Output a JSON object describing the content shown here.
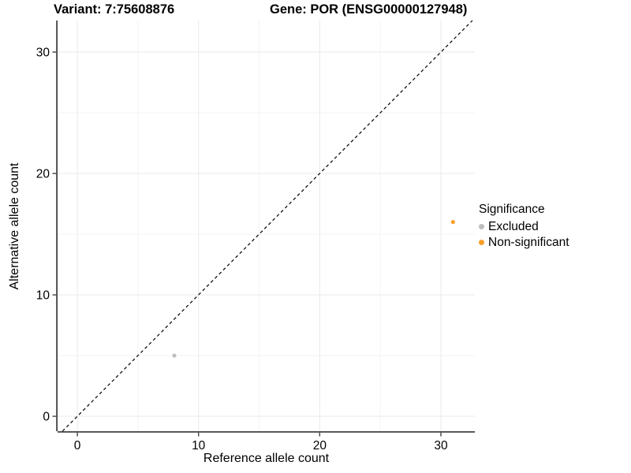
{
  "titles": {
    "variant": "Variant: 7:75608876",
    "gene": "Gene: POR (ENSG00000127948)"
  },
  "axes": {
    "x_label": "Reference allele count",
    "y_label": "Alternative allele count"
  },
  "legend": {
    "title": "Significance",
    "items": [
      {
        "label": "Excluded",
        "color": "#BDBDBD"
      },
      {
        "label": "Non-significant",
        "color": "#F9A02B"
      }
    ]
  },
  "chart_data": {
    "type": "scatter",
    "title": "Variant: 7:75608876   Gene: POR (ENSG00000127948)",
    "xlabel": "Reference allele count",
    "ylabel": "Alternative allele count",
    "xlim": [
      -1.63,
      32.8
    ],
    "ylim": [
      -1.23,
      32.6
    ],
    "x_ticks": [
      0,
      10,
      20,
      30
    ],
    "y_ticks": [
      0,
      10,
      20,
      30
    ],
    "x_minor_breaks": [
      5,
      15,
      25
    ],
    "y_minor_breaks": [
      5,
      15,
      25
    ],
    "grid": true,
    "legend_position": "right",
    "identity_line": {
      "type": "y=x",
      "style": "dashed",
      "color": "#000000"
    },
    "series": [
      {
        "name": "Excluded",
        "color": "#BDBDBD",
        "points": [
          {
            "x": 8,
            "y": 5
          }
        ]
      },
      {
        "name": "Non-significant",
        "color": "#F9A02B",
        "points": [
          {
            "x": 31,
            "y": 16
          }
        ]
      }
    ],
    "style": {
      "grid_major_color": "#E9E9E9",
      "grid_minor_color": "#F3F3F3",
      "axis_color": "#424242",
      "point_radius": 2.6
    }
  }
}
